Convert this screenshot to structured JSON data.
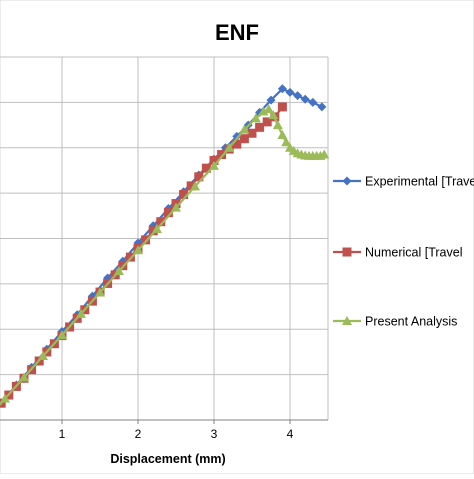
{
  "chart_data": {
    "type": "line",
    "title": "ENF",
    "xlabel": "Displacement (mm)",
    "ylabel": "",
    "xlim": [
      0,
      4.5
    ],
    "ylim": [
      0,
      800
    ],
    "x_ticks": [
      1,
      2,
      3,
      4
    ],
    "x_tick_labels": [
      "1",
      "2",
      "3",
      "4"
    ],
    "grid": true,
    "legend_position": "right",
    "series": [
      {
        "name": "Experimental  [Travel",
        "color": "#4472c4",
        "marker": "diamond",
        "x": [
          0,
          0.2,
          0.4,
          0.6,
          0.8,
          1.0,
          1.2,
          1.4,
          1.6,
          1.8,
          2.0,
          2.2,
          2.4,
          2.6,
          2.8,
          3.0,
          3.15,
          3.3,
          3.45,
          3.6,
          3.75,
          3.9,
          4.0,
          4.1,
          4.2,
          4.3,
          4.42
        ],
        "y": [
          0,
          38,
          77,
          116,
          156,
          195,
          232,
          273,
          313,
          350,
          390,
          428,
          466,
          503,
          540,
          575,
          600,
          625,
          650,
          678,
          705,
          730,
          722,
          715,
          707,
          700,
          690
        ]
      },
      {
        "name": "Numerical  [Travel",
        "color": "#c0504d",
        "marker": "square",
        "x": [
          0,
          0.1,
          0.2,
          0.3,
          0.4,
          0.5,
          0.6,
          0.7,
          0.8,
          0.9,
          1.0,
          1.1,
          1.2,
          1.3,
          1.4,
          1.5,
          1.6,
          1.7,
          1.8,
          1.9,
          2.0,
          2.1,
          2.2,
          2.3,
          2.4,
          2.5,
          2.6,
          2.7,
          2.8,
          2.9,
          3.0,
          3.1,
          3.2,
          3.3,
          3.4,
          3.5,
          3.6,
          3.7,
          3.8,
          3.9
        ],
        "y": [
          0,
          18,
          37,
          55,
          74,
          92,
          111,
          130,
          150,
          168,
          186,
          205,
          224,
          243,
          262,
          282,
          301,
          320,
          340,
          359,
          378,
          397,
          417,
          437,
          457,
          477,
          497,
          516,
          536,
          555,
          572,
          585,
          597,
          608,
          620,
          632,
          645,
          657,
          668,
          690
        ]
      },
      {
        "name": "Present Analysis",
        "color": "#9bbb59",
        "marker": "triangle",
        "x": [
          0,
          0.25,
          0.5,
          0.75,
          1.0,
          1.25,
          1.5,
          1.75,
          2.0,
          2.25,
          2.5,
          2.75,
          3.0,
          3.2,
          3.4,
          3.55,
          3.65,
          3.72,
          3.78,
          3.84,
          3.9,
          3.95,
          4.0,
          4.05,
          4.1,
          4.15,
          4.2,
          4.25,
          4.3,
          4.35,
          4.4,
          4.45
        ],
        "y": [
          0,
          47,
          94,
          141,
          187,
          234,
          281,
          328,
          374,
          421,
          468,
          515,
          560,
          600,
          640,
          665,
          680,
          685,
          672,
          650,
          628,
          612,
          600,
          593,
          588,
          585,
          583,
          582,
          582,
          582,
          582,
          585
        ]
      }
    ]
  }
}
